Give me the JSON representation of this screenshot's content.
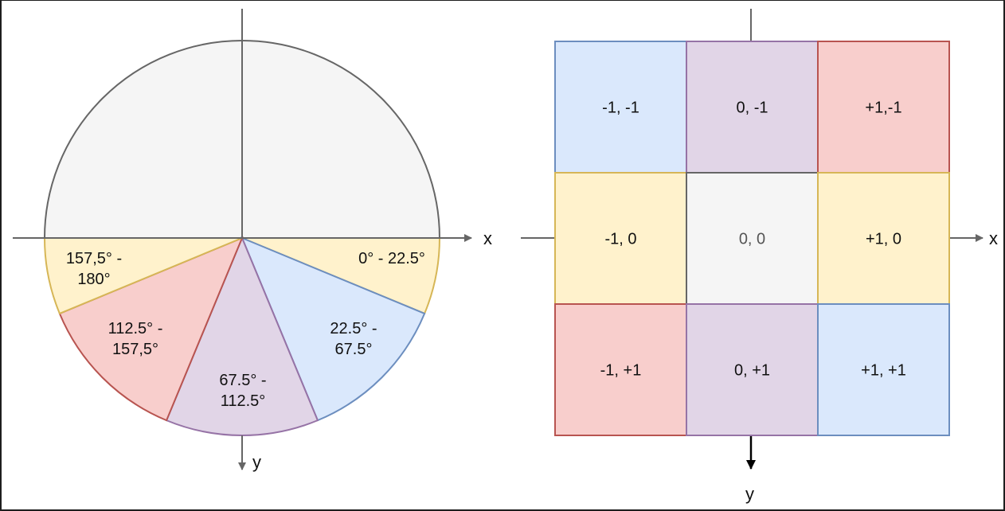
{
  "colors": {
    "yellow": "#fff2cc",
    "yellow_stroke": "#d6b656",
    "blue": "#dae8fc",
    "blue_stroke": "#6c8ebf",
    "purple": "#e1d5e7",
    "purple_stroke": "#9673a6",
    "red": "#f8cecc",
    "red_stroke": "#b85450",
    "gray": "#f5f5f5",
    "gray_stroke": "#666666",
    "axis": "#666666"
  },
  "left_diagram": {
    "x_axis_label": "x",
    "y_axis_label": "y",
    "sectors": [
      {
        "lines": [
          "0° - 22.5°"
        ],
        "from_deg": 0,
        "to_deg": 22.5,
        "color": "yellow"
      },
      {
        "lines": [
          "22.5° -",
          "67.5°"
        ],
        "from_deg": 22.5,
        "to_deg": 67.5,
        "color": "blue"
      },
      {
        "lines": [
          "67.5° -",
          "112.5°"
        ],
        "from_deg": 67.5,
        "to_deg": 112.5,
        "color": "purple"
      },
      {
        "lines": [
          "112.5° -",
          "157,5°"
        ],
        "from_deg": 112.5,
        "to_deg": 157.5,
        "color": "red"
      },
      {
        "lines": [
          "157,5° -",
          "180°"
        ],
        "from_deg": 157.5,
        "to_deg": 180,
        "color": "yellow"
      }
    ]
  },
  "right_diagram": {
    "x_axis_label": "x",
    "y_axis_label": "y",
    "cells": [
      {
        "label": "-1, -1",
        "color": "blue"
      },
      {
        "label": "0, -1",
        "color": "purple"
      },
      {
        "label": "+1,-1",
        "color": "red"
      },
      {
        "label": "-1, 0",
        "color": "yellow"
      },
      {
        "label": "0, 0",
        "color": "gray"
      },
      {
        "label": "+1, 0",
        "color": "yellow"
      },
      {
        "label": "-1, +1",
        "color": "red"
      },
      {
        "label": "0, +1",
        "color": "purple"
      },
      {
        "label": "+1, +1",
        "color": "blue"
      }
    ]
  }
}
